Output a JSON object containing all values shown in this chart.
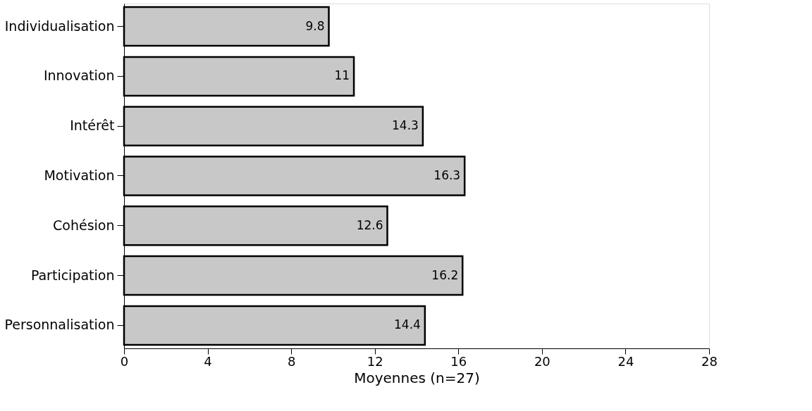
{
  "chart_data": {
    "type": "bar",
    "orientation": "horizontal",
    "xlabel": "Moyennes (n=27)",
    "categories": [
      "Individualisation",
      "Innovation",
      "Intérêt",
      "Motivation",
      "Cohésion",
      "Participation",
      "Personnalisation"
    ],
    "values": [
      9.8,
      11,
      14.3,
      16.3,
      12.6,
      16.2,
      14.4
    ],
    "color": "#c8c8c8",
    "xlim": [
      0,
      28
    ],
    "xticks": [
      0,
      4,
      8,
      12,
      16,
      20,
      24,
      28
    ],
    "data_labels": true,
    "grid": false
  }
}
